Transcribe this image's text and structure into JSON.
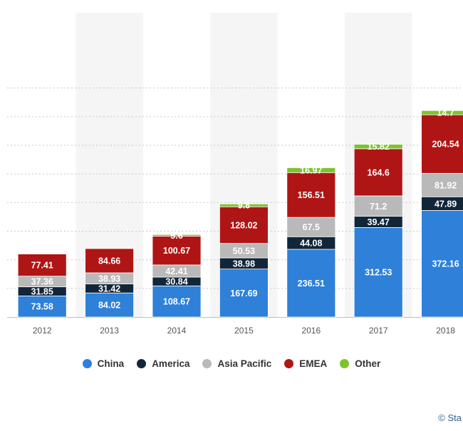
{
  "chart_data": {
    "type": "bar",
    "stacked": true,
    "categories": [
      "2012",
      "2013",
      "2014",
      "2015",
      "2016",
      "2017",
      "2018"
    ],
    "series": [
      {
        "name": "China",
        "color": "#2e80d9",
        "values": [
          73.58,
          84.02,
          108.67,
          167.69,
          236.51,
          312.53,
          372.16
        ]
      },
      {
        "name": "America",
        "color": "#12263a",
        "values": [
          31.85,
          31.42,
          30.84,
          38.98,
          44.08,
          39.47,
          47.89
        ]
      },
      {
        "name": "Asia Pacific",
        "color": "#b9b9b9",
        "values": [
          37.36,
          38.93,
          42.41,
          50.53,
          67.5,
          71.2,
          81.92
        ]
      },
      {
        "name": "EMEA",
        "color": "#b01515",
        "values": [
          77.41,
          84.66,
          100.67,
          128.02,
          156.51,
          164.6,
          204.54
        ]
      },
      {
        "name": "Other",
        "color": "#7cc42a",
        "values": [
          0,
          0,
          5.6,
          9.8,
          16.97,
          15.82,
          14.7
        ]
      }
    ],
    "value_labels": [
      [
        "73.58",
        "84.02",
        "108.67",
        "167.69",
        "236.51",
        "312.53",
        "372.16"
      ],
      [
        "31.85",
        "31.42",
        "30.84",
        "38.98",
        "44.08",
        "39.47",
        "47.89"
      ],
      [
        "37.36",
        "38.93",
        "42.41",
        "50.53",
        "67.5",
        "71.2",
        "81.92"
      ],
      [
        "77.41",
        "84.66",
        "100.67",
        "128.02",
        "156.51",
        "164.6",
        "204.54"
      ],
      [
        "",
        "",
        "5.6",
        "9.8",
        "16.97",
        "15.82",
        "14.7"
      ]
    ],
    "ylim": [
      0,
      800
    ],
    "grid": true,
    "legend": "bottom-center",
    "title": "",
    "xlabel": "",
    "ylabel": ""
  },
  "legend_labels": [
    "China",
    "America",
    "Asia Pacific",
    "EMEA",
    "Other"
  ],
  "credit": "© Sta"
}
